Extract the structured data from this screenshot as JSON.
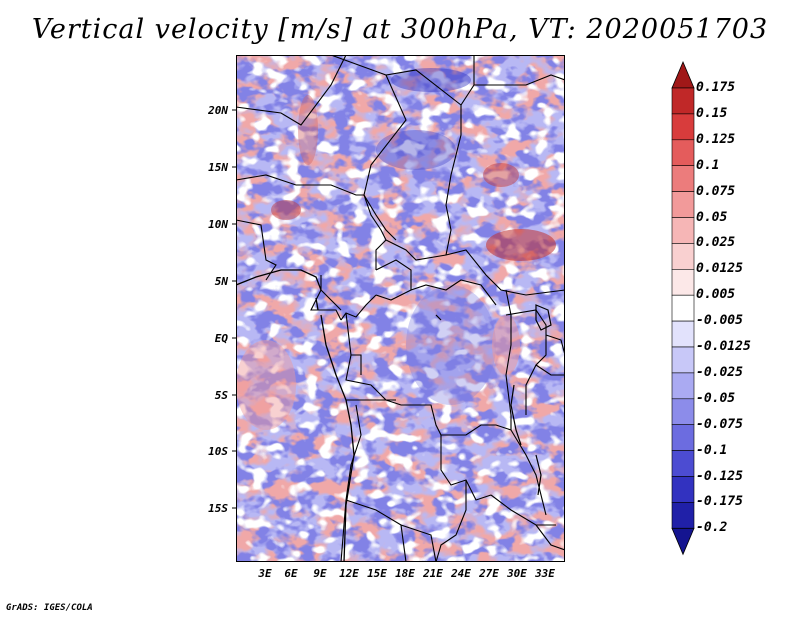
{
  "title": "Vertical velocity [m/s] at 300hPa, VT: 2020051703",
  "credit": "GrADS: IGES/COLA",
  "lat_labels": [
    "20N",
    "15N",
    "10N",
    "5N",
    "EQ",
    "5S",
    "10S",
    "15S"
  ],
  "lon_labels": [
    "3E",
    "6E",
    "9E",
    "12E",
    "15E",
    "18E",
    "21E",
    "24E",
    "27E",
    "30E",
    "33E"
  ],
  "colorbar": {
    "levels": [
      "0.175",
      "0.15",
      "0.125",
      "0.1",
      "0.075",
      "0.05",
      "0.025",
      "0.0125",
      "0.005",
      "-0.005",
      "-0.0125",
      "-0.025",
      "-0.05",
      "-0.075",
      "-0.1",
      "-0.125",
      "-0.175",
      "-0.2"
    ],
    "colors": [
      "#a01818",
      "#c02828",
      "#d83c3c",
      "#e45c5c",
      "#ec7c7c",
      "#f29a9a",
      "#f6b6b6",
      "#f9d0d0",
      "#fce8e8",
      "#ffffff",
      "#e2e2fc",
      "#c8c8f8",
      "#aaaaf2",
      "#8c8cea",
      "#6c6ce0",
      "#4c4cd2",
      "#3232c0",
      "#2020a8",
      "#141490"
    ]
  }
}
